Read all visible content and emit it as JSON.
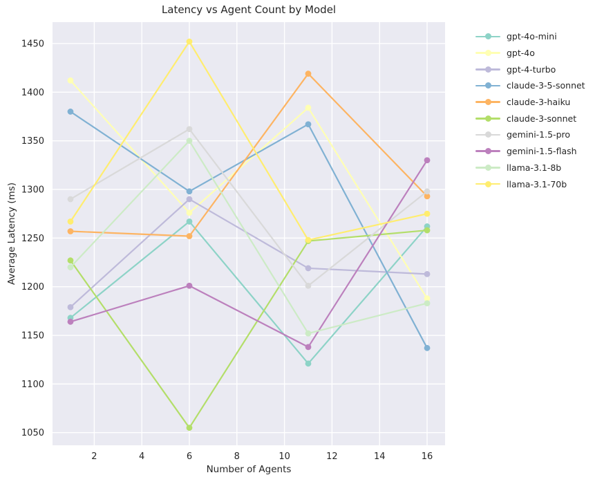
{
  "title": "Latency vs Agent Count by Model",
  "chart_data": {
    "type": "line",
    "title": "Latency vs Agent Count by Model",
    "xlabel": "Number of Agents",
    "ylabel": "Average Latency (ms)",
    "x": [
      1,
      6,
      11,
      16
    ],
    "xticks": [
      2,
      4,
      6,
      8,
      10,
      12,
      14,
      16
    ],
    "yticks": [
      1050,
      1100,
      1150,
      1200,
      1250,
      1300,
      1350,
      1400,
      1450
    ],
    "xlim": [
      0.245,
      16.755
    ],
    "ylim": [
      1037,
      1472
    ],
    "grid": true,
    "legend_position": "right of plot, top aligned",
    "plot_background": "#eaeaf2",
    "grid_color": "#ffffff",
    "text_color": "#262626",
    "series": [
      {
        "name": "gpt-4o-mini",
        "color": "#8dd3c7",
        "values": [
          1168,
          1267,
          1121,
          1262
        ]
      },
      {
        "name": "gpt-4o",
        "color": "#ffffb3",
        "values": [
          1412,
          1276,
          1384,
          1188
        ]
      },
      {
        "name": "gpt-4-turbo",
        "color": "#bebada",
        "values": [
          1179,
          1290,
          1219,
          1213
        ]
      },
      {
        "name": "claude-3-5-sonnet",
        "color": "#80b1d3",
        "values": [
          1380,
          1298,
          1367,
          1137
        ]
      },
      {
        "name": "claude-3-haiku",
        "color": "#fdb462",
        "values": [
          1257,
          1252,
          1419,
          1293
        ]
      },
      {
        "name": "claude-3-sonnet",
        "color": "#b3de69",
        "values": [
          1227,
          1055,
          1247,
          1258
        ]
      },
      {
        "name": "gemini-1.5-pro",
        "color": "#d9d9d9",
        "values": [
          1290,
          1362,
          1201,
          1298
        ]
      },
      {
        "name": "gemini-1.5-flash",
        "color": "#bc80bd",
        "values": [
          1164,
          1201,
          1138,
          1330
        ]
      },
      {
        "name": "llama-3.1-8b",
        "color": "#ccebc5",
        "values": [
          1220,
          1350,
          1152,
          1183
        ]
      },
      {
        "name": "llama-3.1-70b",
        "color": "#ffed6f",
        "values": [
          1267,
          1452,
          1248,
          1275
        ]
      }
    ]
  }
}
